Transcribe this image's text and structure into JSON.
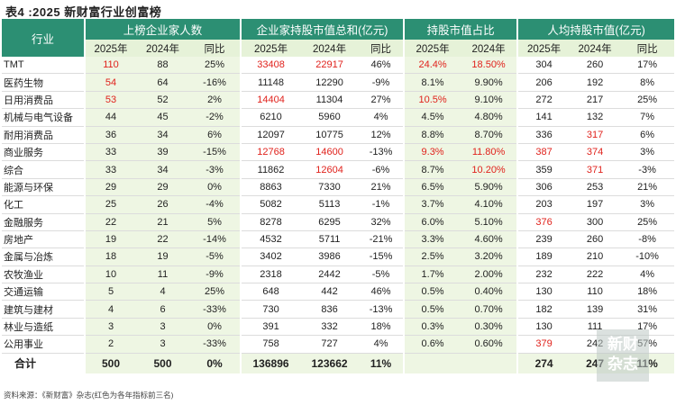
{
  "title": "表4 :2025 新财富行业创富榜",
  "header": {
    "industry": "行业",
    "groups": [
      "上榜企业家人数",
      "企业家持股市值总和(亿元)",
      "持股市值占比",
      "人均持股市值(亿元)"
    ],
    "sub": [
      "2025年",
      "2024年",
      "同比",
      "2025年",
      "2024年",
      "同比",
      "2025年",
      "2024年",
      "2025年",
      "2024年",
      "同比"
    ]
  },
  "rows": [
    {
      "name": "TMT",
      "v": [
        "110",
        "88",
        "25%",
        "33408",
        "22917",
        "46%",
        "24.4%",
        "18.50%",
        "304",
        "260",
        "17%"
      ],
      "red": [
        0,
        3,
        4,
        6,
        7
      ]
    },
    {
      "name": "医药生物",
      "v": [
        "54",
        "64",
        "-16%",
        "11148",
        "12290",
        "-9%",
        "8.1%",
        "9.90%",
        "206",
        "192",
        "8%"
      ],
      "red": [
        0
      ]
    },
    {
      "name": "日用消费品",
      "v": [
        "53",
        "52",
        "2%",
        "14404",
        "11304",
        "27%",
        "10.5%",
        "9.10%",
        "272",
        "217",
        "25%"
      ],
      "red": [
        0,
        3,
        6
      ]
    },
    {
      "name": "机械与电气设备",
      "v": [
        "44",
        "45",
        "-2%",
        "6210",
        "5960",
        "4%",
        "4.5%",
        "4.80%",
        "141",
        "132",
        "7%"
      ],
      "red": []
    },
    {
      "name": "耐用消费品",
      "v": [
        "36",
        "34",
        "6%",
        "12097",
        "10775",
        "12%",
        "8.8%",
        "8.70%",
        "336",
        "317",
        "6%"
      ],
      "red": [
        9
      ]
    },
    {
      "name": "商业服务",
      "v": [
        "33",
        "39",
        "-15%",
        "12768",
        "14600",
        "-13%",
        "9.3%",
        "11.80%",
        "387",
        "374",
        "3%"
      ],
      "red": [
        3,
        4,
        6,
        7,
        8,
        9
      ]
    },
    {
      "name": "综合",
      "v": [
        "33",
        "34",
        "-3%",
        "11862",
        "12604",
        "-6%",
        "8.7%",
        "10.20%",
        "359",
        "371",
        "-3%"
      ],
      "red": [
        4,
        7,
        9
      ]
    },
    {
      "name": "能源与环保",
      "v": [
        "29",
        "29",
        "0%",
        "8863",
        "7330",
        "21%",
        "6.5%",
        "5.90%",
        "306",
        "253",
        "21%"
      ],
      "red": []
    },
    {
      "name": "化工",
      "v": [
        "25",
        "26",
        "-4%",
        "5082",
        "5113",
        "-1%",
        "3.7%",
        "4.10%",
        "203",
        "197",
        "3%"
      ],
      "red": []
    },
    {
      "name": "金融服务",
      "v": [
        "22",
        "21",
        "5%",
        "8278",
        "6295",
        "32%",
        "6.0%",
        "5.10%",
        "376",
        "300",
        "25%"
      ],
      "red": [
        8
      ]
    },
    {
      "name": "房地产",
      "v": [
        "19",
        "22",
        "-14%",
        "4532",
        "5711",
        "-21%",
        "3.3%",
        "4.60%",
        "239",
        "260",
        "-8%"
      ],
      "red": []
    },
    {
      "name": "金属与冶炼",
      "v": [
        "18",
        "19",
        "-5%",
        "3402",
        "3986",
        "-15%",
        "2.5%",
        "3.20%",
        "189",
        "210",
        "-10%"
      ],
      "red": []
    },
    {
      "name": "农牧渔业",
      "v": [
        "10",
        "11",
        "-9%",
        "2318",
        "2442",
        "-5%",
        "1.7%",
        "2.00%",
        "232",
        "222",
        "4%"
      ],
      "red": []
    },
    {
      "name": "交通运输",
      "v": [
        "5",
        "4",
        "25%",
        "648",
        "442",
        "46%",
        "0.5%",
        "0.40%",
        "130",
        "110",
        "18%"
      ],
      "red": []
    },
    {
      "name": "建筑与建材",
      "v": [
        "4",
        "6",
        "-33%",
        "730",
        "836",
        "-13%",
        "0.5%",
        "0.70%",
        "182",
        "139",
        "31%"
      ],
      "red": []
    },
    {
      "name": "林业与造纸",
      "v": [
        "3",
        "3",
        "0%",
        "391",
        "332",
        "18%",
        "0.3%",
        "0.30%",
        "130",
        "111",
        "17%"
      ],
      "red": []
    },
    {
      "name": "公用事业",
      "v": [
        "2",
        "3",
        "-33%",
        "758",
        "727",
        "4%",
        "0.6%",
        "0.60%",
        "379",
        "242",
        "57%"
      ],
      "red": [
        8
      ]
    }
  ],
  "total": {
    "name": "合计",
    "v": [
      "500",
      "500",
      "0%",
      "136896",
      "123662",
      "11%",
      "",
      "",
      "274",
      "247",
      "11%"
    ]
  },
  "source": "资料来源：《新财富》杂志(红色为各年指标前三名)",
  "watermark": [
    "新财",
    "杂志"
  ],
  "colors": {
    "header_green": "#2c8f73",
    "light_green": "#e6f2d8",
    "highlight_red": "#e0221c"
  }
}
